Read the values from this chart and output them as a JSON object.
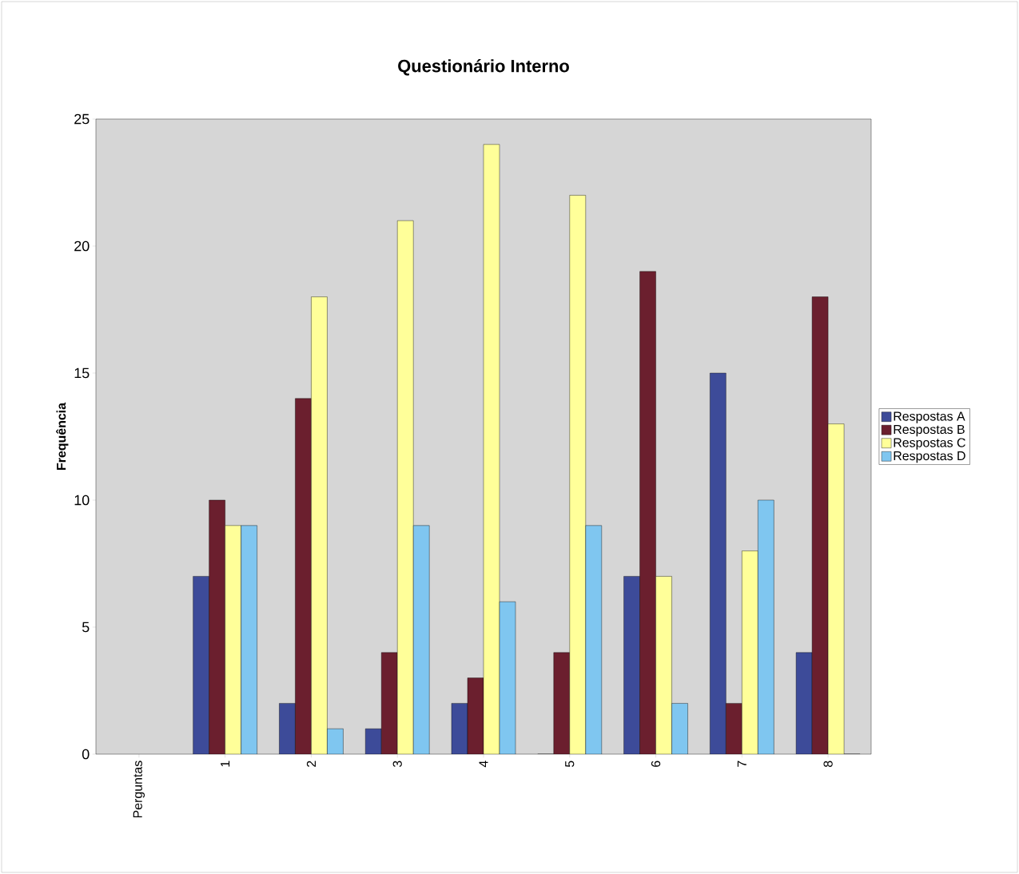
{
  "chart_data": {
    "type": "bar",
    "title": "Questionário Interno",
    "ylabel": "Frequência",
    "categories": [
      "Perguntas",
      "1",
      "2",
      "3",
      "4",
      "5",
      "6",
      "7",
      "8"
    ],
    "series": [
      {
        "name": "Respostas A",
        "color": "#3d4b99",
        "values": [
          null,
          7,
          2,
          1,
          2,
          0,
          7,
          15,
          4
        ]
      },
      {
        "name": "Respostas B",
        "color": "#6b1f2e",
        "values": [
          null,
          10,
          14,
          4,
          3,
          4,
          19,
          2,
          18
        ]
      },
      {
        "name": "Respostas C",
        "color": "#ffff99",
        "values": [
          null,
          9,
          18,
          21,
          24,
          22,
          7,
          8,
          13
        ]
      },
      {
        "name": "Respostas D",
        "color": "#7fc6f0",
        "values": [
          null,
          9,
          1,
          9,
          6,
          9,
          2,
          10,
          0
        ]
      }
    ],
    "ylim": [
      0,
      25
    ],
    "yticks": [
      0,
      5,
      10,
      15,
      20,
      25
    ],
    "grid": false,
    "legend": "right"
  }
}
